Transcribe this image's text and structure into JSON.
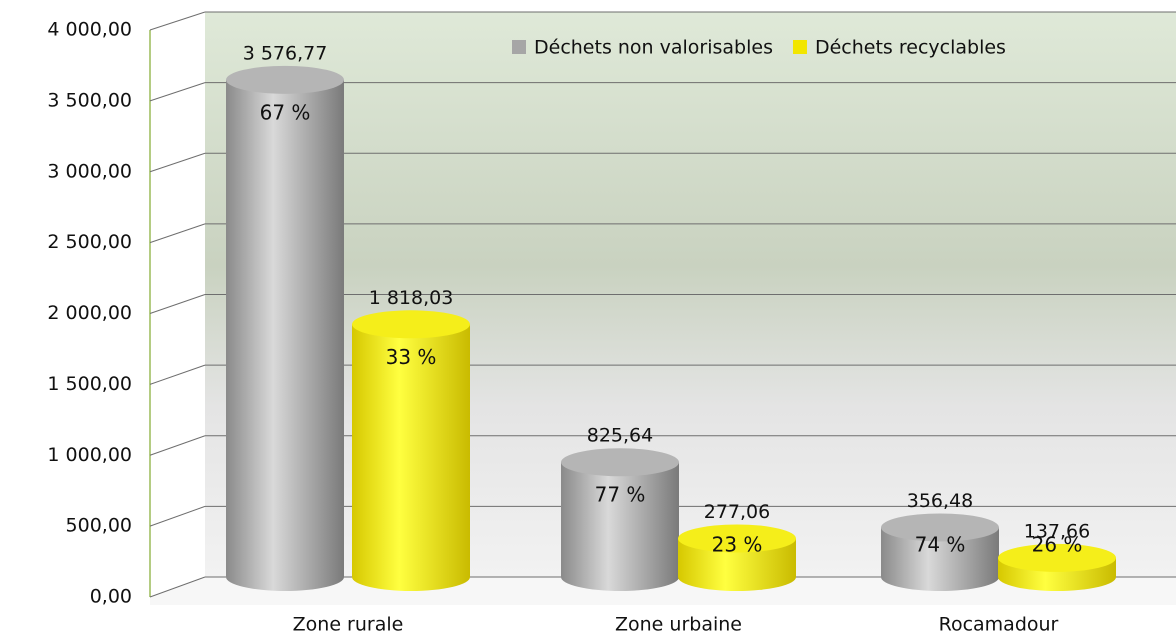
{
  "chart_data": {
    "type": "bar3d",
    "categories": [
      "Zone rurale",
      "Zone urbaine",
      "Rocamadour"
    ],
    "series": [
      {
        "name": "Déchets non valorisables",
        "color": "#a6a6a6",
        "values": [
          3576.77,
          825.64,
          356.48
        ],
        "value_labels": [
          "3 576,77",
          "825,64",
          "356,48"
        ],
        "shares": [
          67,
          77,
          74
        ],
        "share_labels": [
          "67 %",
          "77 %",
          "74 %"
        ]
      },
      {
        "name": "Déchets recyclables",
        "color": "#f2e600",
        "values": [
          1818.03,
          277.06,
          137.66
        ],
        "value_labels": [
          "1 818,03",
          "277,06",
          "137,66"
        ],
        "shares": [
          33,
          23,
          26
        ],
        "share_labels": [
          "33 %",
          "23 %",
          "26 %"
        ]
      }
    ],
    "ylim": [
      0,
      4000
    ],
    "yticks": [
      {
        "value": 0,
        "label": "0,00"
      },
      {
        "value": 500,
        "label": "500,00"
      },
      {
        "value": 1000,
        "label": "1 000,00"
      },
      {
        "value": 1500,
        "label": "1 500,00"
      },
      {
        "value": 2000,
        "label": "2 000,00"
      },
      {
        "value": 2500,
        "label": "2 500,00"
      },
      {
        "value": 3000,
        "label": "3 000,00"
      },
      {
        "value": 3500,
        "label": "3 500,00"
      },
      {
        "value": 4000,
        "label": "4 000,00"
      }
    ],
    "grid": true,
    "legend": "top-right"
  }
}
